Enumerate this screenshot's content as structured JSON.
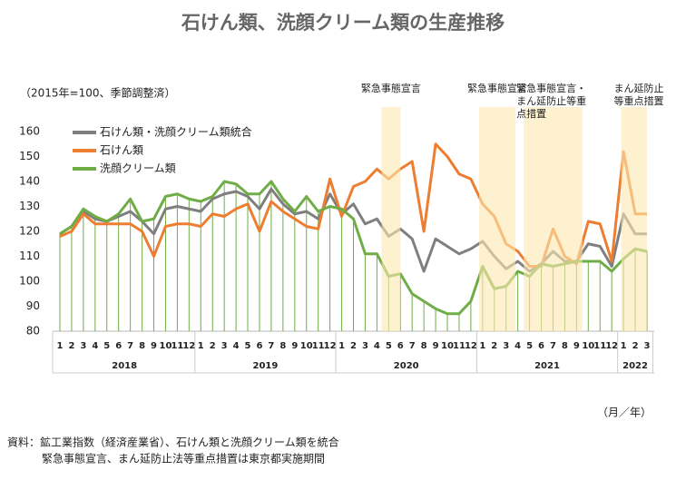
{
  "chart_data": {
    "type": "line",
    "title": "石けん類、洗顔クリーム類の生産推移",
    "y_label": "（2015年=100、季節調整済）",
    "x_unit": "（月／年）",
    "notes": [
      "資料：鉱工業指数（経済産業省）、石けん類と洗顔クリーム類を統合",
      "緊急事態宣言、まん延防止法等重点措置は東京都実施期間"
    ],
    "categories": [
      "1",
      "2",
      "3",
      "4",
      "5",
      "6",
      "7",
      "8",
      "9",
      "10",
      "11",
      "12",
      "1",
      "2",
      "3",
      "4",
      "5",
      "6",
      "7",
      "8",
      "9",
      "10",
      "11",
      "12",
      "1",
      "2",
      "3",
      "4",
      "5",
      "6",
      "7",
      "8",
      "9",
      "10",
      "11",
      "12",
      "1",
      "2",
      "3",
      "4",
      "5",
      "6",
      "7",
      "8",
      "9",
      "10",
      "11",
      "12",
      "1",
      "2",
      "3"
    ],
    "year_groups": [
      {
        "label": "2018",
        "count": 12
      },
      {
        "label": "2019",
        "count": 12
      },
      {
        "label": "2020",
        "count": 12
      },
      {
        "label": "2021",
        "count": 12
      },
      {
        "label": "2022",
        "count": 3
      }
    ],
    "periods": [
      {
        "label": [
          "緊急事態宣言"
        ],
        "span": [
          27.4,
          29
        ]
      },
      {
        "label": [
          "緊急事態宣言"
        ],
        "span": [
          35.7,
          38.8
        ]
      },
      {
        "label": [
          "緊急事態宣言・",
          "まん延防止等重",
          "点措置"
        ],
        "span": [
          39.5,
          44.5
        ]
      },
      {
        "label": [
          "まん延防止",
          "等重点措置"
        ],
        "span": [
          47.8,
          50
        ]
      }
    ],
    "series": [
      {
        "name": "石けん類・洗顔クリーム類統合",
        "color": "#7f7f7f",
        "values": [
          119,
          122,
          128,
          125,
          124,
          126,
          128,
          124,
          119,
          129,
          130,
          129,
          128,
          133,
          135,
          136,
          134,
          129,
          137,
          131,
          127,
          128,
          125,
          135,
          127,
          131,
          123,
          125,
          118,
          121,
          117,
          104,
          117,
          114,
          111,
          113,
          116,
          110,
          105,
          108,
          104,
          107,
          112,
          108,
          108,
          115,
          114,
          106,
          127,
          119,
          119
        ]
      },
      {
        "name": "石けん類",
        "color": "#ed7d31",
        "values": [
          118,
          120,
          127,
          123,
          123,
          123,
          123,
          120,
          110,
          122,
          123,
          123,
          122,
          127,
          126,
          129,
          131,
          120,
          132,
          128,
          125,
          122,
          121,
          141,
          126,
          138,
          140,
          145,
          141,
          145,
          148,
          120,
          155,
          150,
          143,
          141,
          131,
          126,
          115,
          112,
          106,
          106,
          121,
          110,
          107,
          124,
          123,
          108,
          152,
          127,
          127
        ]
      },
      {
        "name": "洗顔クリーム類",
        "color": "#70ad47",
        "values": [
          119,
          122,
          129,
          126,
          124,
          127,
          133,
          124,
          125,
          134,
          135,
          133,
          132,
          134,
          140,
          139,
          135,
          135,
          140,
          133,
          128,
          134,
          128,
          130,
          129,
          125,
          111,
          111,
          102,
          103,
          95,
          92,
          89,
          87,
          87,
          92,
          106,
          97,
          98,
          104,
          102,
          107,
          106,
          107,
          108,
          108,
          108,
          104,
          109,
          113,
          112
        ]
      }
    ],
    "ylim": [
      80,
      160
    ],
    "yticks": [
      80,
      90,
      100,
      110,
      120,
      130,
      140,
      150,
      160
    ]
  }
}
